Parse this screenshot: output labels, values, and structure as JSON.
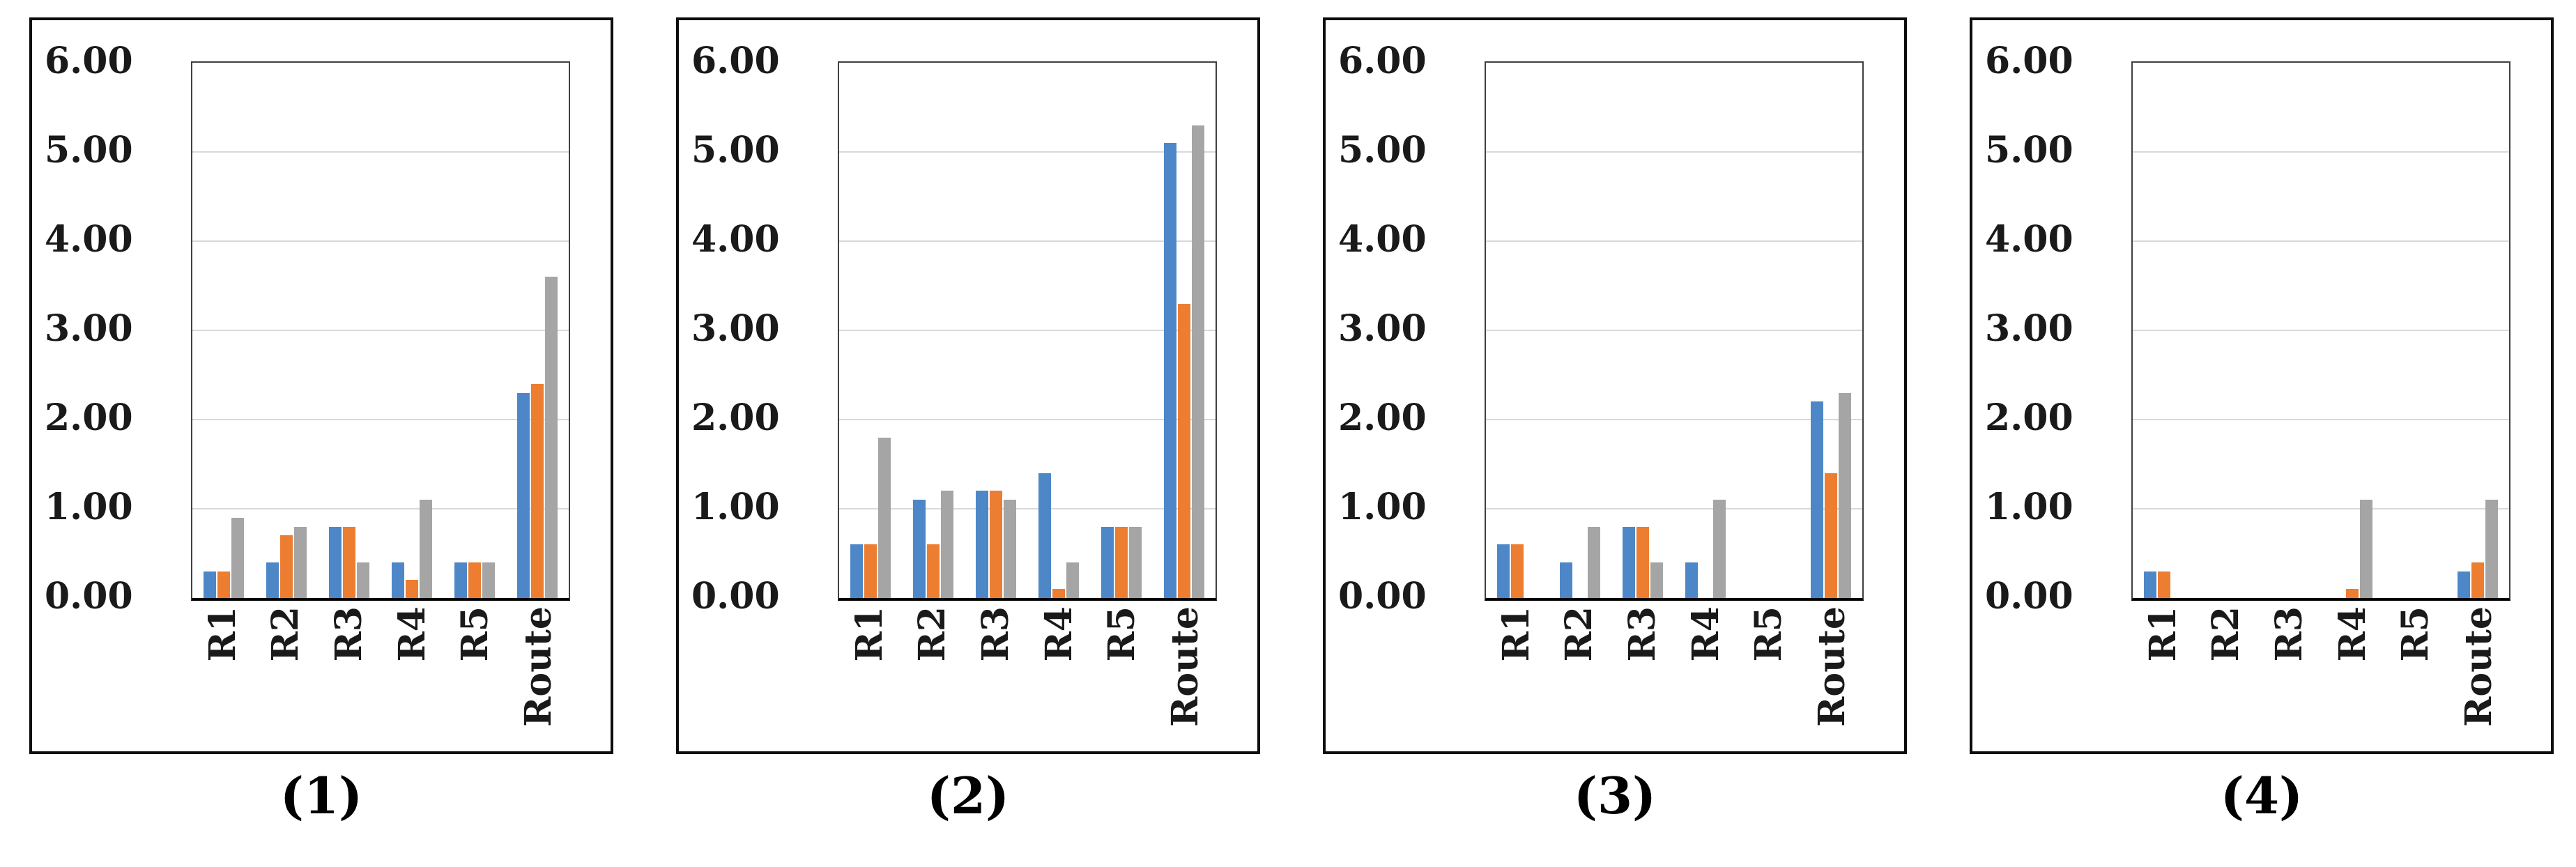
{
  "figure": {
    "description_colors": {
      "series_blue": "#4E87C8",
      "series_orange": "#ED7D31",
      "series_gray": "#A5A5A5",
      "gridline": "#D9D9D9",
      "plot_border": "#404040",
      "axis_line": "#000000",
      "panel_border": "#0D0D0D",
      "text": "#1A1A1A"
    }
  },
  "y_axis": {
    "tick_labels_top_to_bottom": [
      "6.00",
      "5.00",
      "4.00",
      "3.00",
      "2.00",
      "1.00",
      "0.00"
    ],
    "max": 6,
    "min": 0
  },
  "chart_data": [
    {
      "type": "bar",
      "title": "(1)",
      "categories": [
        "R1",
        "R2",
        "R3",
        "R4",
        "R5",
        "Route"
      ],
      "series": [
        {
          "name": "blue",
          "color": "#4E87C8",
          "values": [
            0.3,
            0.4,
            0.8,
            0.4,
            0.4,
            2.3
          ]
        },
        {
          "name": "orange",
          "color": "#ED7D31",
          "values": [
            0.3,
            0.7,
            0.8,
            0.2,
            0.4,
            2.4
          ]
        },
        {
          "name": "gray",
          "color": "#A5A5A5",
          "values": [
            0.9,
            0.8,
            0.4,
            1.1,
            0.4,
            3.6
          ]
        }
      ],
      "xlabel": "",
      "ylabel": "",
      "ylim": [
        0,
        6
      ],
      "yticks": [
        "0.00",
        "1.00",
        "2.00",
        "3.00",
        "4.00",
        "5.00",
        "6.00"
      ],
      "grid": true,
      "legend": "none"
    },
    {
      "type": "bar",
      "title": "(2)",
      "categories": [
        "R1",
        "R2",
        "R3",
        "R4",
        "R5",
        "Route"
      ],
      "series": [
        {
          "name": "blue",
          "color": "#4E87C8",
          "values": [
            0.6,
            1.1,
            1.2,
            1.4,
            0.8,
            5.1
          ]
        },
        {
          "name": "orange",
          "color": "#ED7D31",
          "values": [
            0.6,
            0.6,
            1.2,
            0.1,
            0.8,
            3.3
          ]
        },
        {
          "name": "gray",
          "color": "#A5A5A5",
          "values": [
            1.8,
            1.2,
            1.1,
            0.4,
            0.8,
            5.3
          ]
        }
      ],
      "xlabel": "",
      "ylabel": "",
      "ylim": [
        0,
        6
      ],
      "yticks": [
        "0.00",
        "1.00",
        "2.00",
        "3.00",
        "4.00",
        "5.00",
        "6.00"
      ],
      "grid": true,
      "legend": "none"
    },
    {
      "type": "bar",
      "title": "(3)",
      "categories": [
        "R1",
        "R2",
        "R3",
        "R4",
        "R5",
        "Route"
      ],
      "series": [
        {
          "name": "blue",
          "color": "#4E87C8",
          "values": [
            0.6,
            0.4,
            0.8,
            0.4,
            0,
            2.2
          ]
        },
        {
          "name": "orange",
          "color": "#ED7D31",
          "values": [
            0.6,
            0,
            0.8,
            0,
            0,
            1.4
          ]
        },
        {
          "name": "gray",
          "color": "#A5A5A5",
          "values": [
            0,
            0.8,
            0.4,
            1.1,
            0,
            2.3
          ]
        }
      ],
      "xlabel": "",
      "ylabel": "",
      "ylim": [
        0,
        6
      ],
      "yticks": [
        "0.00",
        "1.00",
        "2.00",
        "3.00",
        "4.00",
        "5.00",
        "6.00"
      ],
      "grid": true,
      "legend": "none"
    },
    {
      "type": "bar",
      "title": "(4)",
      "categories": [
        "R1",
        "R2",
        "R3",
        "R4",
        "R5",
        "Route"
      ],
      "series": [
        {
          "name": "blue",
          "color": "#4E87C8",
          "values": [
            0.3,
            0,
            0,
            0,
            0,
            0.3
          ]
        },
        {
          "name": "orange",
          "color": "#ED7D31",
          "values": [
            0.3,
            0,
            0,
            0.1,
            0,
            0.4
          ]
        },
        {
          "name": "gray",
          "color": "#A5A5A5",
          "values": [
            0,
            0,
            0,
            1.1,
            0,
            1.1
          ]
        }
      ],
      "xlabel": "",
      "ylabel": "",
      "ylim": [
        0,
        6
      ],
      "yticks": [
        "0.00",
        "1.00",
        "2.00",
        "3.00",
        "4.00",
        "5.00",
        "6.00"
      ],
      "grid": true,
      "legend": "none"
    }
  ]
}
